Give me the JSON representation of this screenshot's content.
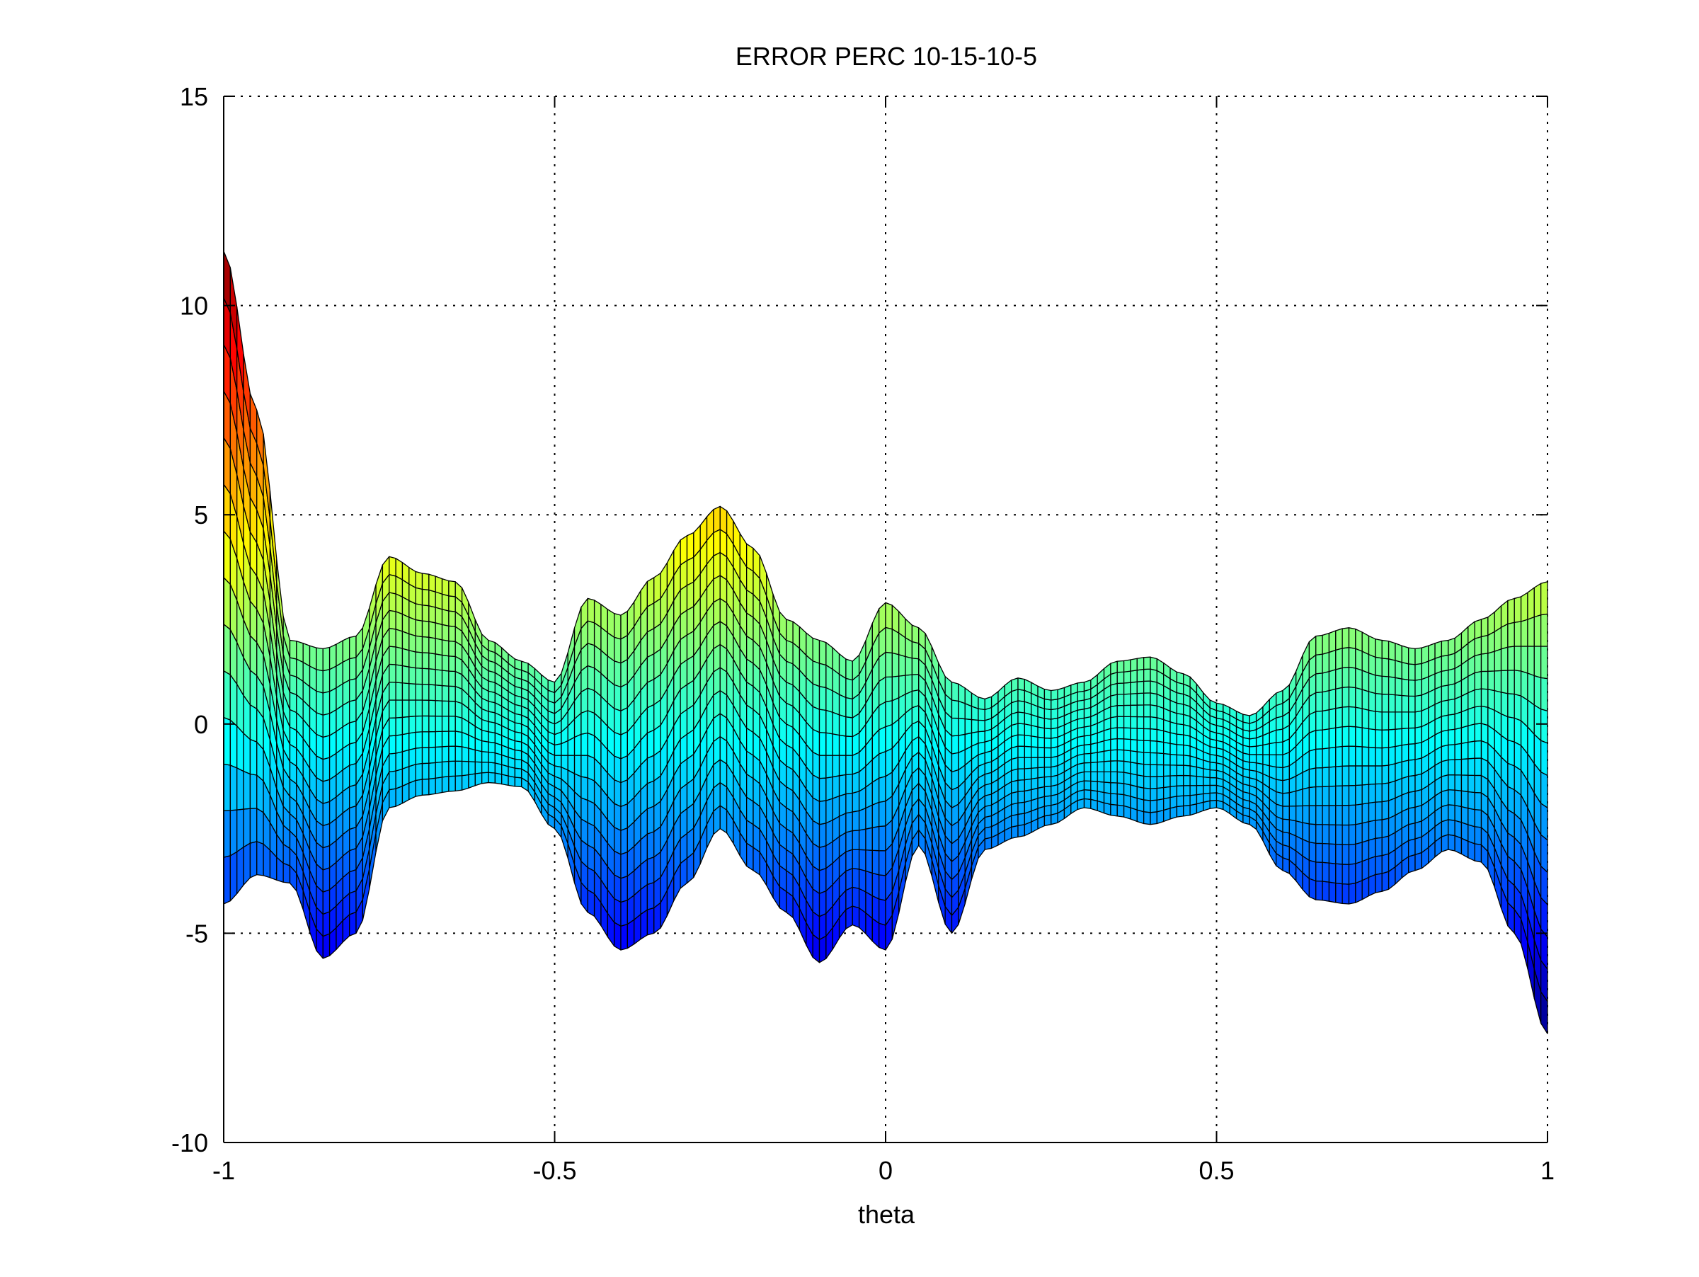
{
  "chart_data": {
    "type": "surface",
    "title": "ERROR PERC 10-15-10-5",
    "xlabel": "theta",
    "ylabel": "",
    "xlim": [
      -1,
      1
    ],
    "ylim": [
      -10,
      15
    ],
    "xticks": [
      -1,
      -0.5,
      0,
      0.5,
      1
    ],
    "xtick_labels": [
      "-1",
      "-0.5",
      "0",
      "0.5",
      "1"
    ],
    "yticks": [
      -10,
      -5,
      0,
      5,
      10,
      15
    ],
    "ytick_labels": [
      "-10",
      "-5",
      "0",
      "5",
      "10",
      "15"
    ],
    "grid": true,
    "colormap": "jet",
    "color_range": [
      -7.5,
      11.3
    ],
    "view": "side view (elevation 0) of a 3-D mesh surface",
    "series": [
      {
        "name": "",
        "x": [
          -1,
          -0.95,
          -0.9,
          -0.85,
          -0.8,
          -0.75,
          -0.7,
          -0.65,
          -0.6,
          -0.55,
          -0.5,
          -0.45,
          -0.4,
          -0.35,
          -0.3,
          -0.25,
          -0.2,
          -0.15,
          -0.1,
          -0.05,
          0,
          0.05,
          0.1,
          0.15,
          0.2,
          0.25,
          0.3,
          0.35,
          0.4,
          0.45,
          0.5,
          0.55,
          0.6,
          0.65,
          0.7,
          0.75,
          0.8,
          0.85,
          0.9,
          0.95,
          1
        ],
        "upper": [
          11.3,
          7.5,
          2.0,
          1.8,
          2.1,
          4.0,
          3.6,
          3.4,
          2.0,
          1.5,
          1.0,
          3.0,
          2.6,
          3.5,
          4.5,
          5.2,
          4.2,
          2.5,
          2.0,
          1.5,
          2.9,
          2.3,
          1.0,
          0.6,
          1.1,
          0.8,
          1.0,
          1.5,
          1.6,
          1.2,
          0.5,
          0.2,
          0.8,
          2.1,
          2.3,
          2.0,
          1.8,
          2.0,
          2.5,
          3.0,
          3.4
        ],
        "lower": [
          -4.3,
          -3.6,
          -3.8,
          -5.6,
          -5.0,
          -2.0,
          -1.7,
          -1.6,
          -1.4,
          -1.5,
          -2.5,
          -4.5,
          -5.4,
          -5.0,
          -3.8,
          -2.5,
          -3.5,
          -4.5,
          -5.7,
          -4.8,
          -5.4,
          -2.9,
          -5.0,
          -3.0,
          -2.7,
          -2.4,
          -2.0,
          -2.2,
          -2.4,
          -2.2,
          -2.0,
          -2.4,
          -3.5,
          -4.2,
          -4.3,
          -4.0,
          -3.5,
          -3.0,
          -3.3,
          -5.0,
          -7.4
        ]
      }
    ]
  }
}
